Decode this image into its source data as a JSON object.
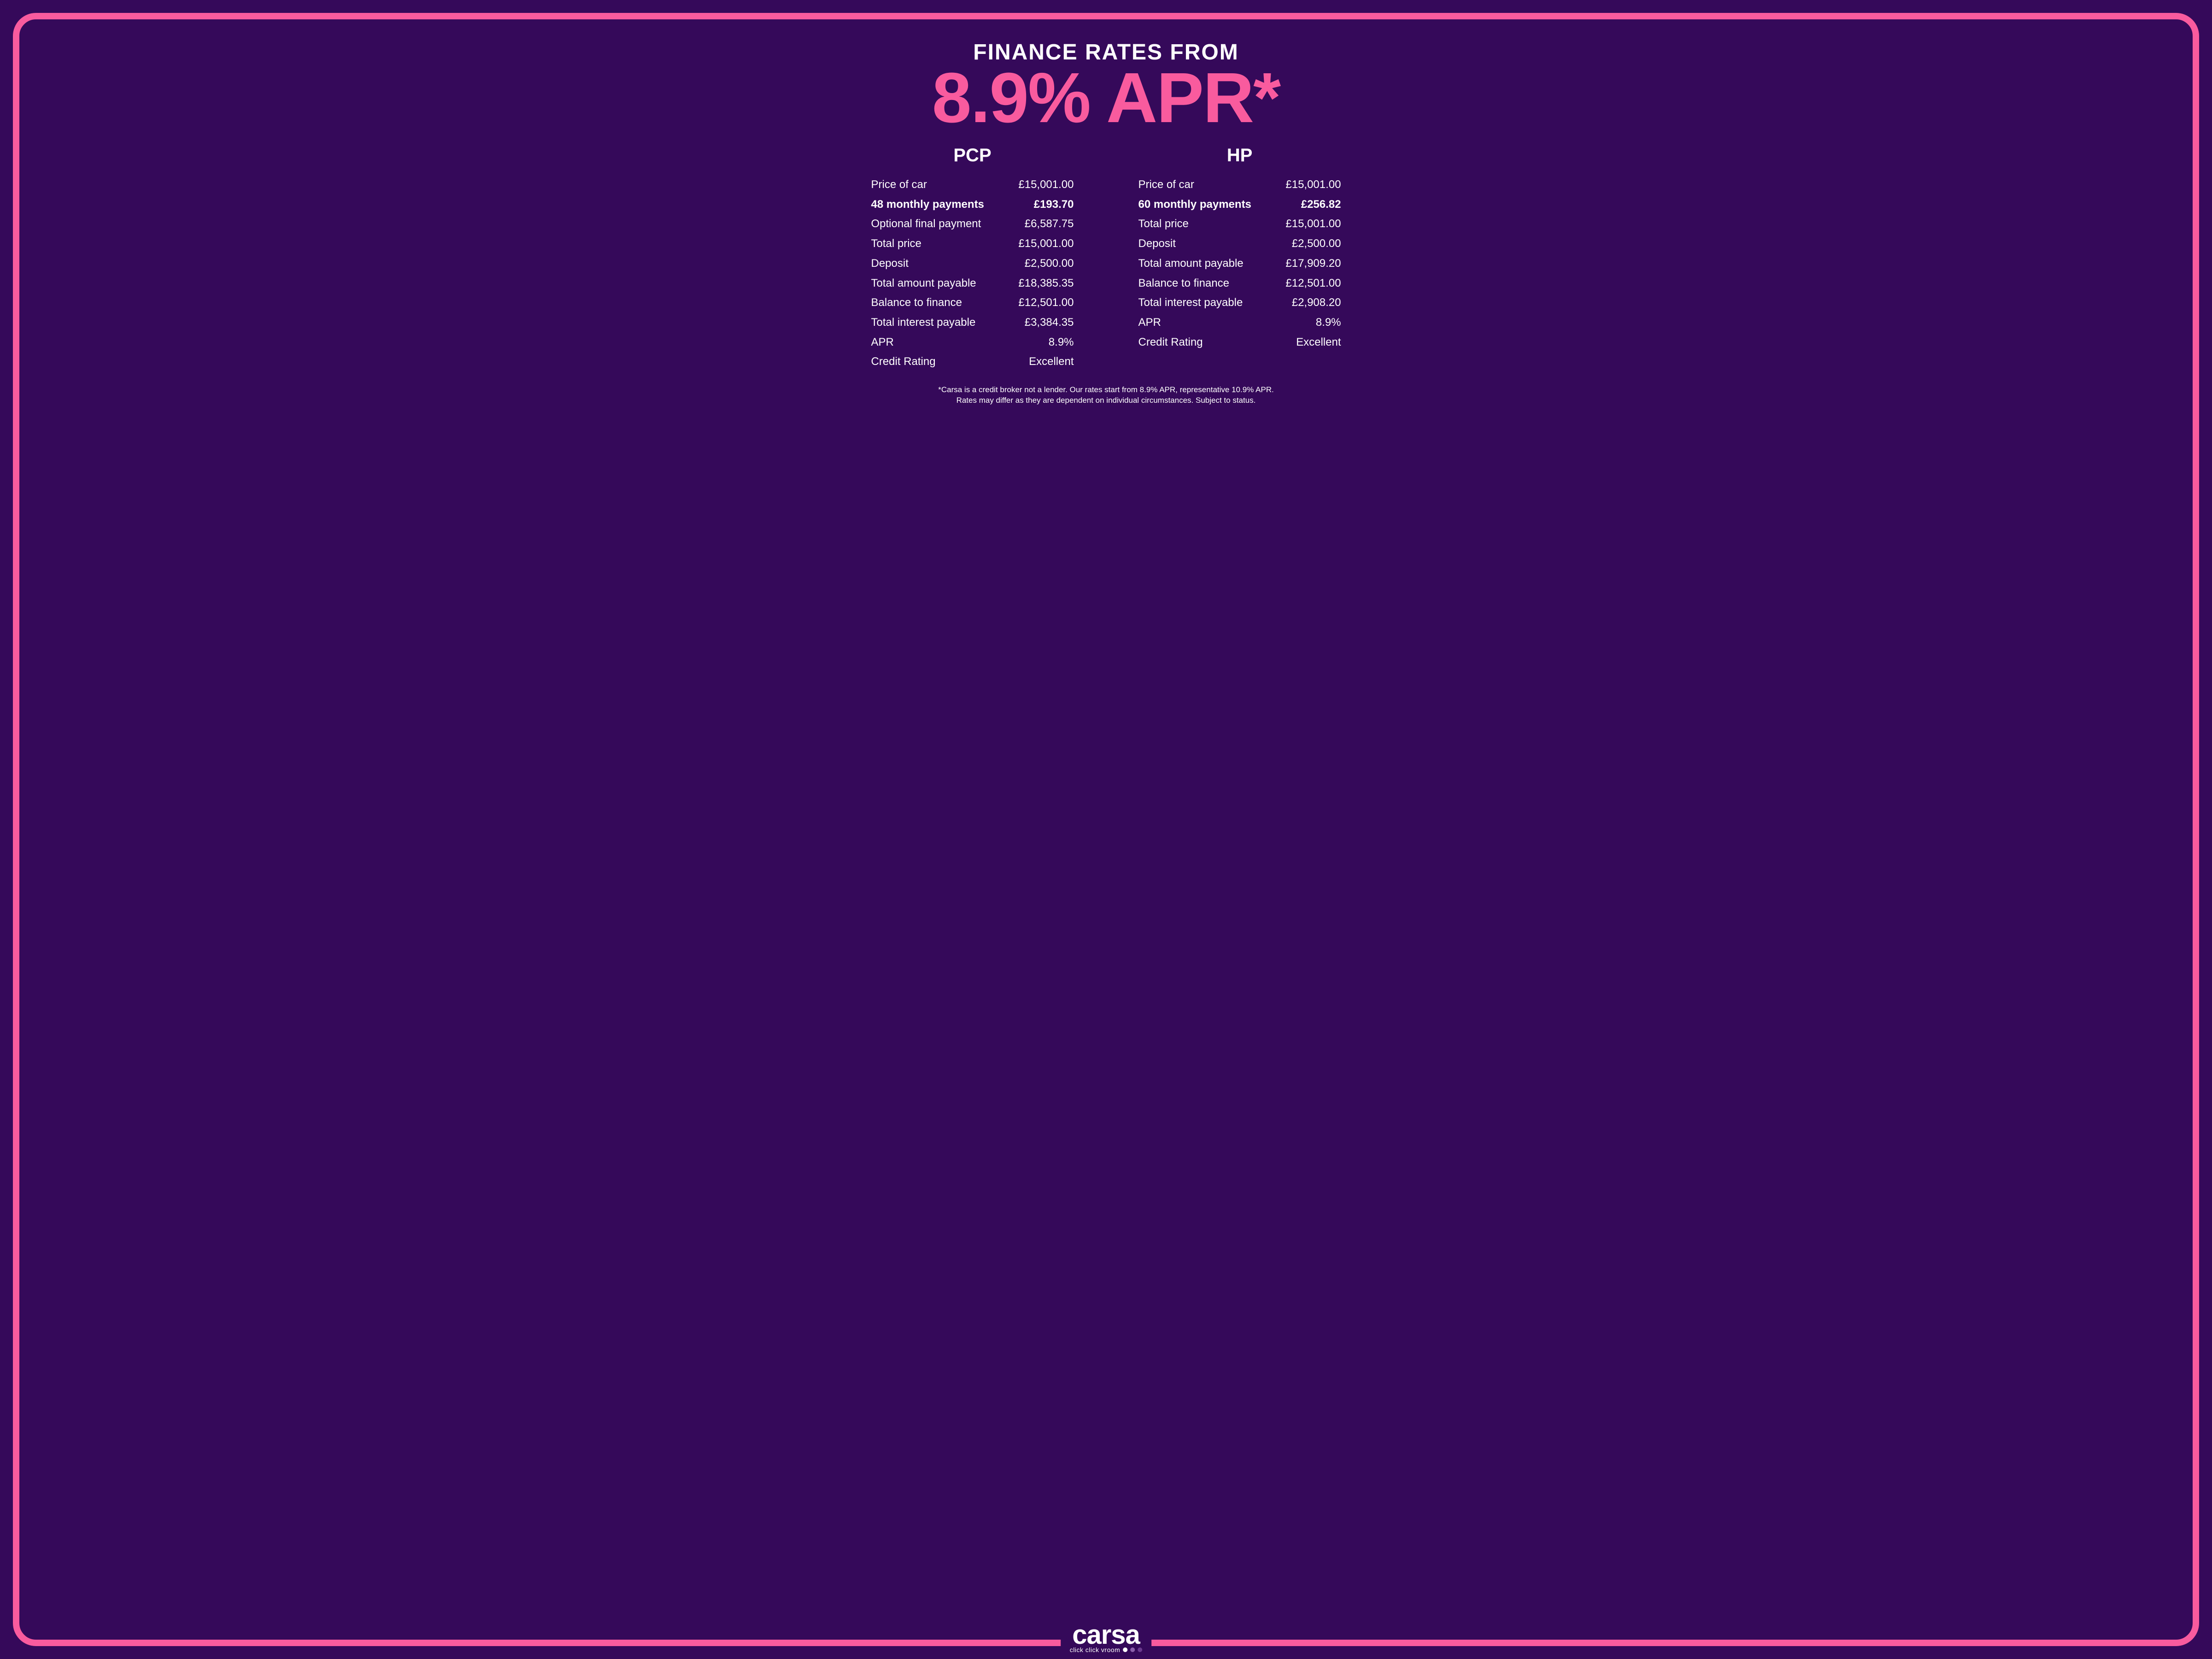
{
  "colors": {
    "background": "#35095a",
    "accent_pink": "#f95b9e",
    "text_white": "#ffffff",
    "dot1": "#ffffff",
    "dot2": "#8b5fab",
    "dot3": "#6b3a8f"
  },
  "header": {
    "title_small": "FINANCE RATES FROM",
    "title_big": "8.9% APR*"
  },
  "columns": [
    {
      "heading": "PCP",
      "rows": [
        {
          "label": "Price of car",
          "value": "£15,001.00",
          "bold": false
        },
        {
          "label": "48 monthly payments",
          "value": "£193.70",
          "bold": true
        },
        {
          "label": "Optional final payment",
          "value": "£6,587.75",
          "bold": false
        },
        {
          "label": "Total price",
          "value": "£15,001.00",
          "bold": false
        },
        {
          "label": "Deposit",
          "value": "£2,500.00",
          "bold": false
        },
        {
          "label": "Total amount payable",
          "value": "£18,385.35",
          "bold": false
        },
        {
          "label": "Balance to finance",
          "value": "£12,501.00",
          "bold": false
        },
        {
          "label": "Total interest payable",
          "value": "£3,384.35",
          "bold": false
        },
        {
          "label": "APR",
          "value": "8.9%",
          "bold": false
        },
        {
          "label": "Credit Rating",
          "value": "Excellent",
          "bold": false
        }
      ]
    },
    {
      "heading": "HP",
      "rows": [
        {
          "label": "Price of car",
          "value": "£15,001.00",
          "bold": false
        },
        {
          "label": "60 monthly payments",
          "value": "£256.82",
          "bold": true
        },
        {
          "label": "Total price",
          "value": "£15,001.00",
          "bold": false
        },
        {
          "label": "Deposit",
          "value": "£2,500.00",
          "bold": false
        },
        {
          "label": "Total amount payable",
          "value": "£17,909.20",
          "bold": false
        },
        {
          "label": "Balance to finance",
          "value": "£12,501.00",
          "bold": false
        },
        {
          "label": "Total interest payable",
          "value": "£2,908.20",
          "bold": false
        },
        {
          "label": "APR",
          "value": "8.9%",
          "bold": false
        },
        {
          "label": "Credit Rating",
          "value": "Excellent",
          "bold": false
        }
      ]
    }
  ],
  "disclaimer": {
    "line1": "*Carsa is a credit broker not a lender. Our rates start from 8.9% APR, representative 10.9% APR.",
    "line2": "Rates may differ as they are dependent on individual circumstances. Subject to status."
  },
  "logo": {
    "brand": "carsa",
    "tagline": "click click vroom"
  }
}
